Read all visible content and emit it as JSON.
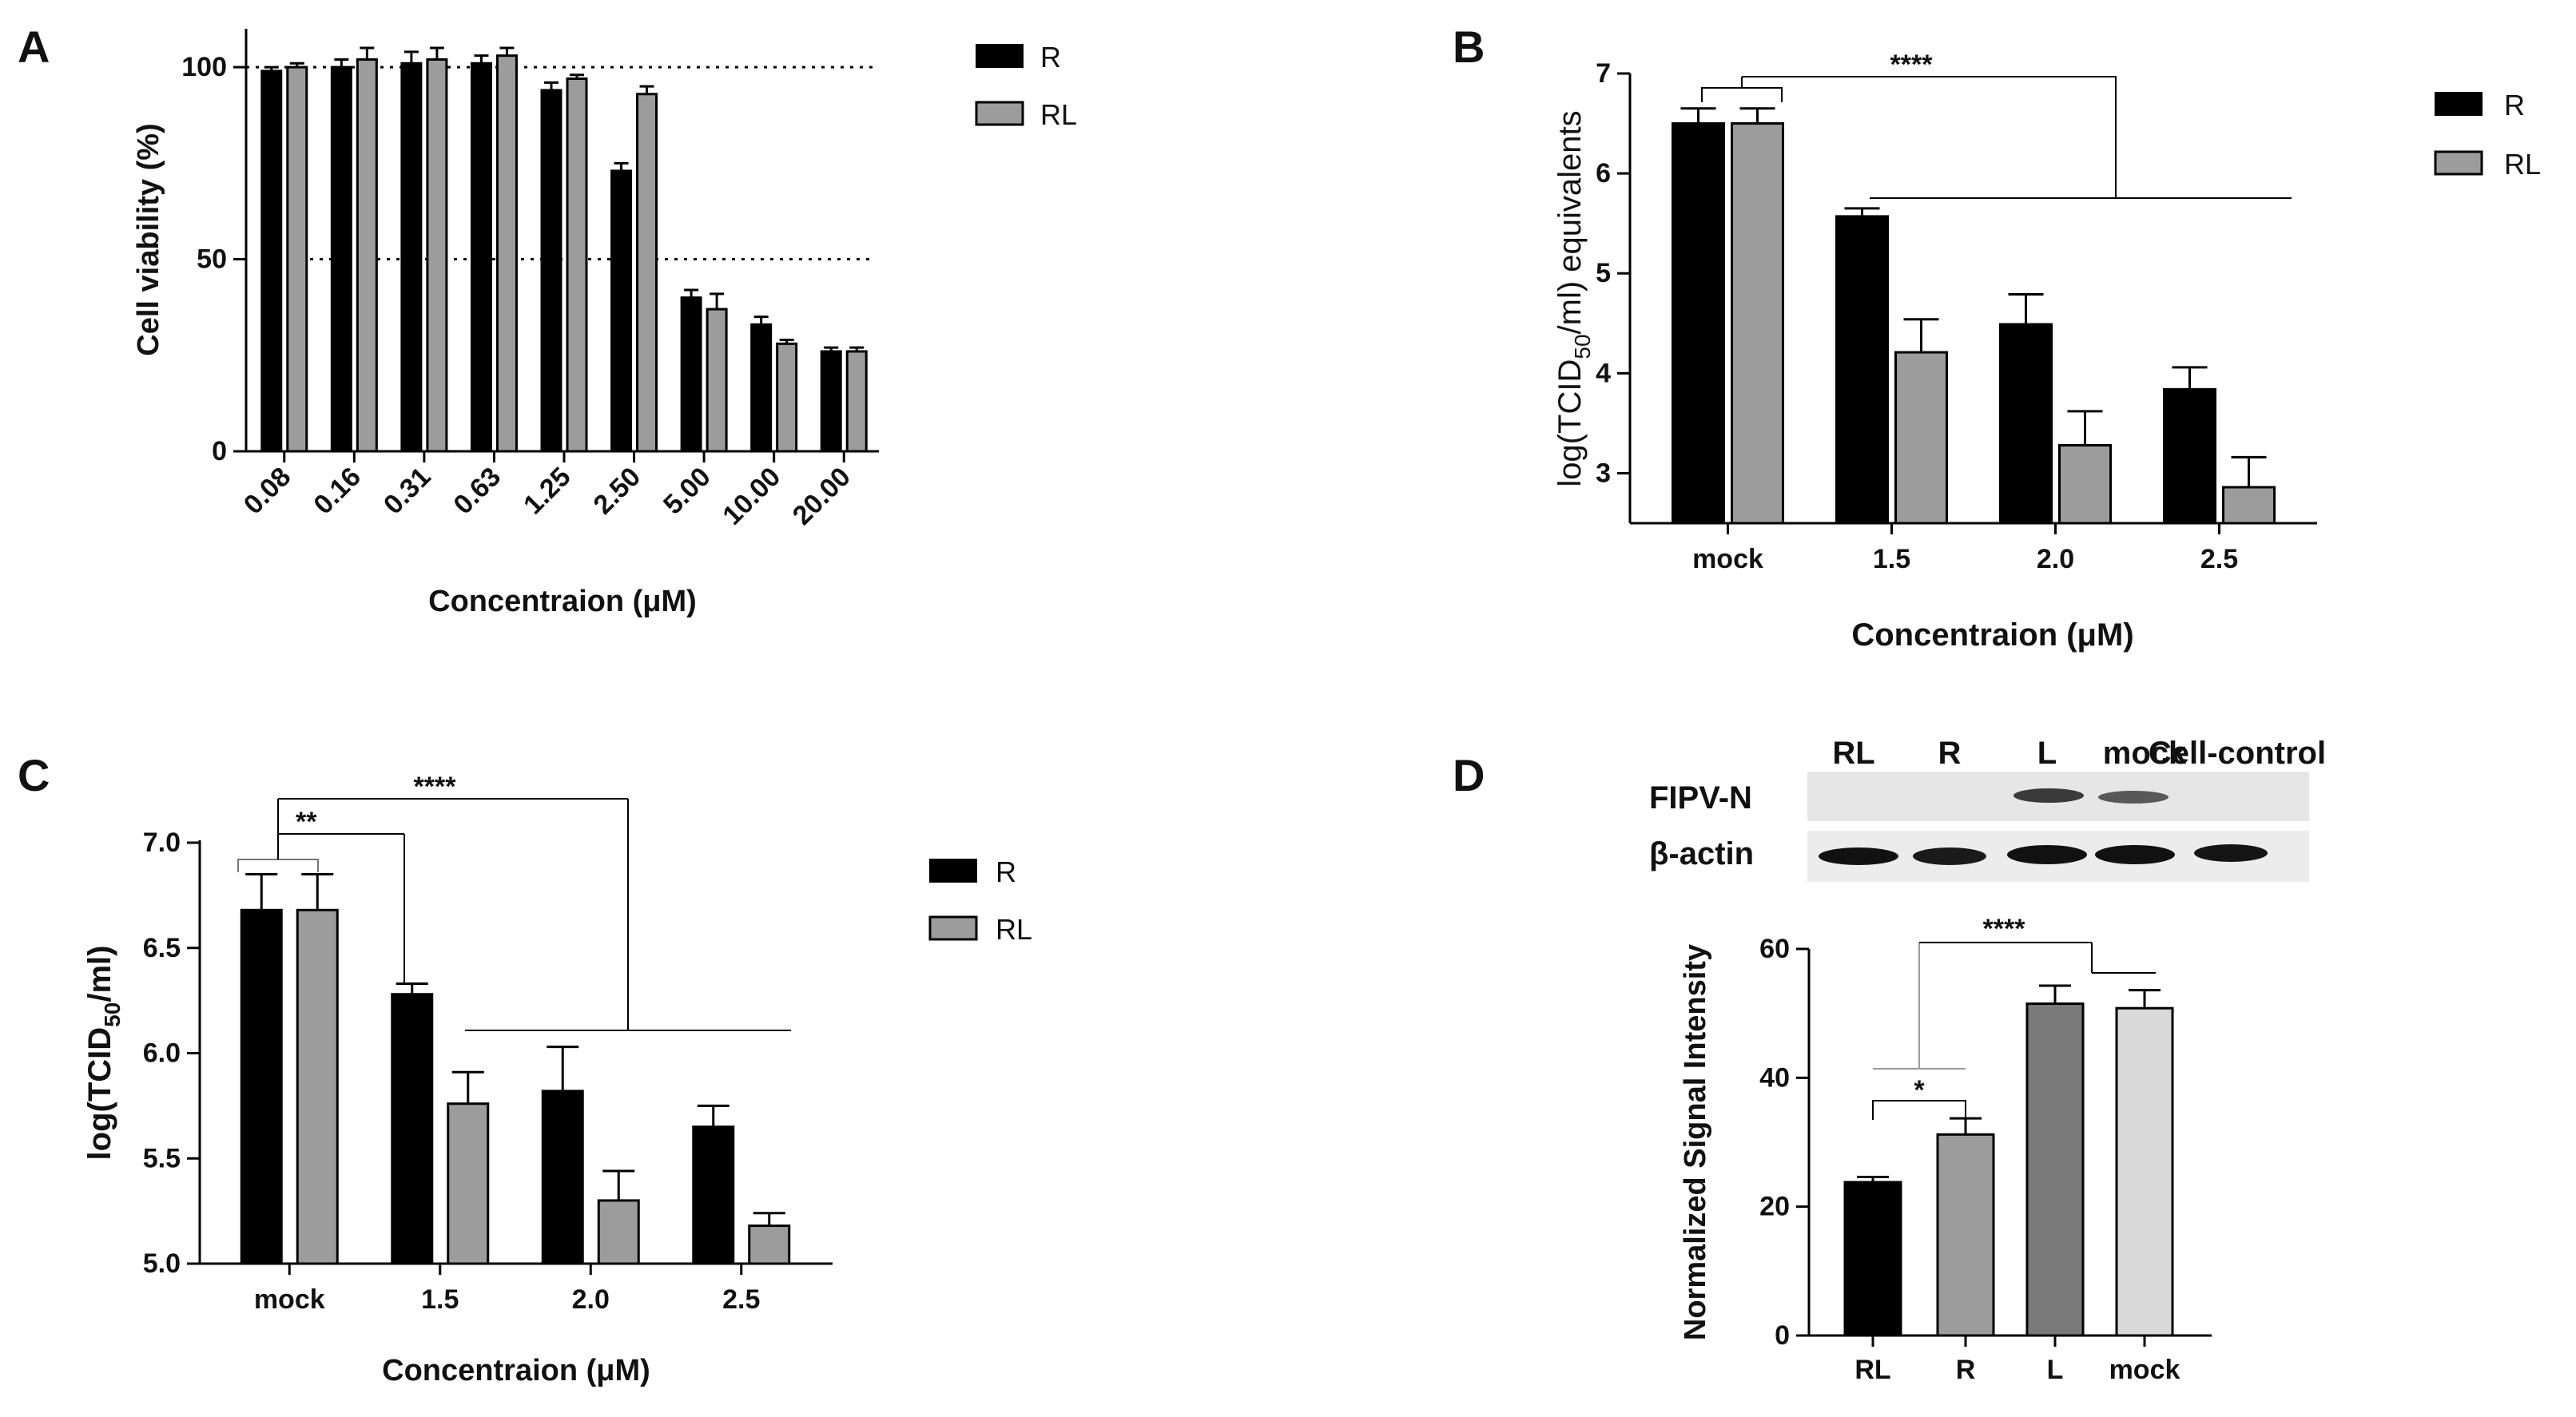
{
  "panels": {
    "A": {
      "label": "A"
    },
    "B": {
      "label": "B"
    },
    "C": {
      "label": "C"
    },
    "D": {
      "label": "D"
    }
  },
  "colors": {
    "R": "#000000",
    "RL": "#9c9c9c",
    "L": "#7a7a7a",
    "mock": "#d9d9d9"
  },
  "western_blot": {
    "lanes": [
      "RL",
      "R",
      "L",
      "mock",
      "Cell-control"
    ],
    "rows": [
      "FIPV-N",
      "β-actin"
    ]
  },
  "chart_data": [
    {
      "panel": "A",
      "type": "bar",
      "xlabel": "Concentraion (μM)",
      "ylabel": "Cell viability (%)",
      "categories": [
        "0.08",
        "0.16",
        "0.31",
        "0.63",
        "1.25",
        "2.50",
        "5.00",
        "10.00",
        "20.00"
      ],
      "series": [
        {
          "name": "R",
          "values": [
            99,
            100,
            101,
            101,
            94,
            73,
            40,
            33,
            26
          ],
          "errors": [
            1,
            2,
            3,
            2,
            2,
            2,
            2,
            2,
            1
          ]
        },
        {
          "name": "RL",
          "values": [
            100,
            102,
            102,
            103,
            97,
            93,
            37,
            28,
            26
          ],
          "errors": [
            1,
            3,
            3,
            2,
            1,
            2,
            4,
            1,
            1
          ]
        }
      ],
      "ylim": [
        0,
        110
      ],
      "yticks": [
        "0",
        "50",
        "100"
      ],
      "reference_lines": [
        50,
        100
      ],
      "legend": "top-right"
    },
    {
      "panel": "B",
      "type": "bar",
      "xlabel": "Concentraion (μM)",
      "ylabel": "log(TCID50/ml) equivalents",
      "categories": [
        "mock",
        "1.5",
        "2.0",
        "2.5"
      ],
      "series": [
        {
          "name": "R",
          "values": [
            6.5,
            5.57,
            4.49,
            3.84
          ],
          "errors": [
            0.15,
            0.08,
            0.3,
            0.22
          ]
        },
        {
          "name": "RL",
          "values": [
            6.5,
            4.21,
            3.28,
            2.86
          ],
          "errors": [
            0.15,
            0.33,
            0.34,
            0.3
          ]
        }
      ],
      "ylim": [
        2.5,
        7
      ],
      "yticks": [
        "3",
        "4",
        "5",
        "6",
        "7"
      ],
      "significance": [
        "****"
      ],
      "legend": "top-right"
    },
    {
      "panel": "C",
      "type": "bar",
      "xlabel": "Concentraion (μM)",
      "ylabel": "log(TCID50/ml)",
      "categories": [
        "mock",
        "1.5",
        "2.0",
        "2.5"
      ],
      "series": [
        {
          "name": "R",
          "values": [
            6.68,
            6.28,
            5.82,
            5.65
          ],
          "errors": [
            0.17,
            0.05,
            0.21,
            0.1
          ]
        },
        {
          "name": "RL",
          "values": [
            6.68,
            5.76,
            5.3,
            5.18
          ],
          "errors": [
            0.17,
            0.15,
            0.14,
            0.06
          ]
        }
      ],
      "ylim": [
        5.0,
        7.0
      ],
      "yticks": [
        "5.0",
        "5.5",
        "6.0",
        "6.5",
        "7.0"
      ],
      "significance": [
        "**",
        "****"
      ],
      "legend": "top-right"
    },
    {
      "panel": "D",
      "type": "bar",
      "xlabel": "",
      "ylabel": "Normalized Signal Intensity",
      "categories": [
        "RL",
        "R",
        "L",
        "mock"
      ],
      "values": [
        23.8,
        31.2,
        51.5,
        50.8
      ],
      "errors": [
        0.8,
        2.5,
        2.8,
        2.8
      ],
      "ylim": [
        0,
        60
      ],
      "yticks": [
        "0",
        "20",
        "40",
        "60"
      ],
      "significance": [
        "*",
        "****"
      ]
    }
  ]
}
